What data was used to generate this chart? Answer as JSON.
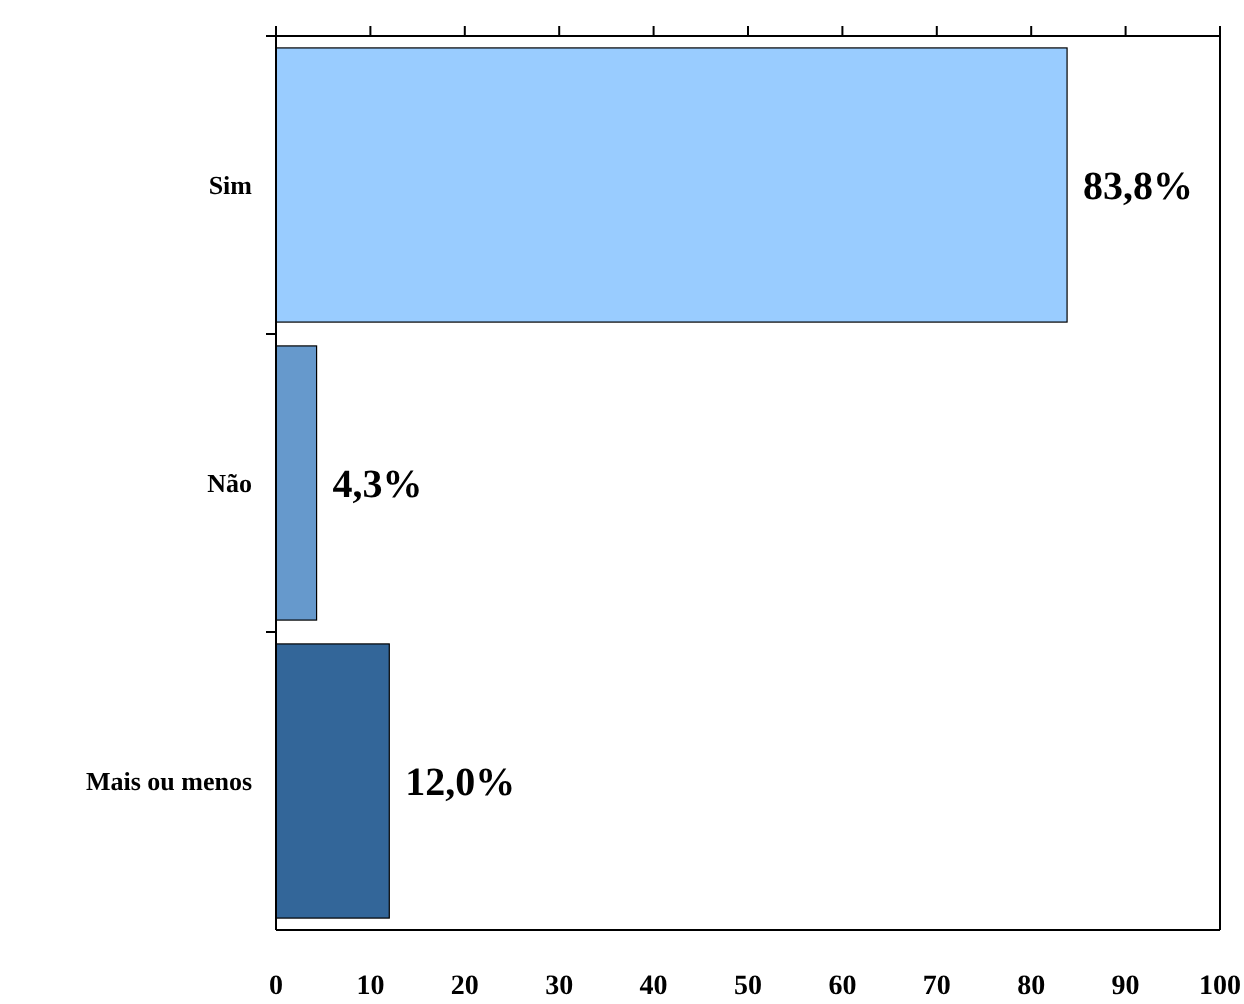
{
  "chart_data": {
    "type": "bar",
    "orientation": "horizontal",
    "categories": [
      "Sim",
      "Não",
      "Mais ou menos"
    ],
    "values": [
      83.8,
      4.3,
      12.0
    ],
    "colors": [
      "#99ccff",
      "#6699cc",
      "#336699"
    ],
    "value_labels": [
      "83,8%",
      "4,3%",
      "12,0%"
    ],
    "xlim": [
      0,
      100
    ],
    "xticks": [
      0,
      10,
      20,
      30,
      40,
      50,
      60,
      70,
      80,
      90,
      100
    ],
    "grid": false
  }
}
